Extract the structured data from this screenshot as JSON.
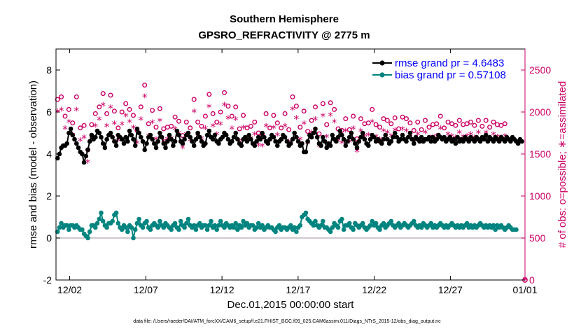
{
  "chart_data": {
    "type": "line",
    "title": "Southern Hemisphere",
    "subtitle": "GPSRO_REFRACTIVITY @ 2775 m",
    "xlabel": "Dec.01,2015 00:00:00 start",
    "ylabel_left": "rmse and bias (model - observation)",
    "ylabel_right": "# of obs: o=possible; ∗=assimilated",
    "footnote": "data file: /Users/raeder/DAI/ATM_forcXX/CAM6_setup/f.e21.FHIST_BGC.f09_025.CAM6assim.011/Diags_NTrS_2015-12/obs_diag_output.nc",
    "xlim_days": [
      0.6,
      31.4
    ],
    "ylim_left": [
      -2,
      9
    ],
    "ylim_right": [
      0,
      2750
    ],
    "x_ticks": [
      {
        "day": 1.5,
        "label": "12/02"
      },
      {
        "day": 6.5,
        "label": "12/07"
      },
      {
        "day": 11.5,
        "label": "12/12"
      },
      {
        "day": 16.5,
        "label": "12/17"
      },
      {
        "day": 21.5,
        "label": "12/22"
      },
      {
        "day": 26.5,
        "label": "12/27"
      },
      {
        "day": 31.5,
        "label": "01/01"
      }
    ],
    "y_ticks_left": [
      {
        "value": -2,
        "label": "-2"
      },
      {
        "value": 0,
        "label": "0"
      },
      {
        "value": 2,
        "label": "2"
      },
      {
        "value": 4,
        "label": "4"
      },
      {
        "value": 6,
        "label": "6"
      },
      {
        "value": 8,
        "label": "8"
      }
    ],
    "y_ticks_right": [
      {
        "value": 0,
        "label": "0"
      },
      {
        "value": 500,
        "label": "500"
      },
      {
        "value": 1000,
        "label": "1000"
      },
      {
        "value": 1500,
        "label": "1500"
      },
      {
        "value": 2000,
        "label": "2000"
      },
      {
        "value": 2500,
        "label": "2500"
      }
    ],
    "series": [
      {
        "name": "rmse",
        "legend": "rmse grand pr = 4.6483",
        "color": "#000000",
        "values": [
          3.8,
          4.0,
          4.3,
          4.4,
          4.4,
          4.5,
          5.0,
          5.2,
          4.9,
          4.7,
          4.5,
          4.3,
          4.1,
          4.0,
          3.6,
          3.9,
          4.2,
          4.6,
          4.9,
          4.7,
          4.8,
          5.1,
          5.0,
          4.8,
          4.5,
          4.3,
          4.7,
          4.9,
          5.0,
          4.8,
          4.6,
          4.4,
          4.9,
          4.8,
          4.7,
          4.5,
          4.8,
          4.6,
          5.1,
          4.9,
          4.7,
          4.4,
          5.2,
          5.0,
          4.8,
          4.6,
          4.2,
          4.5,
          4.8,
          4.9,
          4.7,
          4.5,
          4.3,
          4.6,
          5.0,
          4.8,
          4.5,
          4.3,
          4.6,
          4.9,
          4.7,
          4.4,
          4.6,
          5.1,
          4.9,
          4.6,
          4.5,
          4.7,
          4.9,
          5.0,
          4.8,
          4.6,
          4.4,
          4.7,
          5.0,
          4.8,
          4.6,
          4.4,
          4.5,
          4.9,
          5.1,
          4.8,
          4.7,
          4.9,
          4.6,
          4.5,
          4.7,
          4.8,
          5.0,
          4.9,
          4.7,
          4.5,
          4.6,
          4.8,
          5.0,
          4.7,
          4.5,
          4.4,
          4.7,
          4.8,
          4.6,
          4.9,
          4.7,
          4.5,
          4.4,
          4.6,
          4.8,
          4.7,
          5.0,
          4.8,
          4.6,
          4.5,
          4.7,
          4.9,
          4.8,
          4.6,
          4.4,
          4.6,
          4.7,
          4.9,
          4.8,
          4.6,
          4.4,
          4.5,
          4.7,
          5.0,
          4.8,
          4.6,
          4.4,
          4.5,
          4.1,
          4.1,
          4.6,
          4.9,
          4.8,
          5.0,
          5.2,
          4.8,
          4.5,
          4.4,
          4.8,
          4.6,
          4.3,
          4.5,
          4.4,
          4.9,
          4.7,
          4.6,
          4.8,
          5.1,
          4.9,
          4.7,
          4.4,
          4.6,
          4.8,
          5.0,
          4.7,
          4.5,
          4.3,
          4.6,
          4.8,
          5.0,
          4.7,
          4.5,
          4.4,
          4.7,
          4.9,
          4.8,
          4.6,
          4.7,
          4.6,
          4.5,
          4.7,
          4.9,
          4.7,
          4.5,
          4.6,
          4.8,
          5.0,
          4.8,
          4.6,
          4.7,
          4.9,
          4.7,
          4.6,
          4.8,
          5.0,
          4.7,
          4.5,
          4.8,
          4.7,
          4.6,
          4.8,
          4.6,
          4.7,
          4.7,
          4.8,
          4.6,
          4.8,
          4.6,
          4.7,
          4.9,
          4.8,
          4.7,
          4.8,
          4.6,
          4.7,
          4.8,
          4.6,
          4.7,
          4.5,
          4.8,
          4.6,
          4.7,
          4.6,
          4.8,
          4.7,
          4.6,
          4.8,
          4.7,
          4.6,
          4.8,
          4.7,
          4.6,
          4.8,
          4.7,
          4.9,
          4.6,
          4.8,
          4.7,
          4.6,
          4.8,
          4.7,
          4.6,
          4.8,
          4.7,
          4.6,
          4.8,
          4.7,
          4.6,
          4.8,
          4.7,
          4.6,
          4.5,
          4.7,
          4.6
        ]
      },
      {
        "name": "bias",
        "legend": "bias grand pr = 0.57108",
        "color": "#00847f",
        "values": [
          0.3,
          0.5,
          0.7,
          0.5,
          0.6,
          0.6,
          0.4,
          0.6,
          0.6,
          0.5,
          0.6,
          0.5,
          0.4,
          0.4,
          0.2,
          0.1,
          0.0,
          0.3,
          0.6,
          0.6,
          0.5,
          0.7,
          0.9,
          1.2,
          0.8,
          0.6,
          0.5,
          0.7,
          0.7,
          0.8,
          1.1,
          1.2,
          0.7,
          0.5,
          0.4,
          0.6,
          0.5,
          0.3,
          0.6,
          0.5,
          0.0,
          0.4,
          0.7,
          0.9,
          0.6,
          0.5,
          0.7,
          0.8,
          0.5,
          0.4,
          0.6,
          0.7,
          0.6,
          0.5,
          0.8,
          0.6,
          0.5,
          0.7,
          0.6,
          0.5,
          0.4,
          0.6,
          0.7,
          0.5,
          0.4,
          0.8,
          0.6,
          0.5,
          0.7,
          0.9,
          0.6,
          0.5,
          0.6,
          0.4,
          0.6,
          0.7,
          0.5,
          0.6,
          0.6,
          0.4,
          0.6,
          0.8,
          0.5,
          0.6,
          0.4,
          0.6,
          0.8,
          0.6,
          0.5,
          0.7,
          0.6,
          0.5,
          0.6,
          0.5,
          0.7,
          0.4,
          0.6,
          0.5,
          0.8,
          0.6,
          0.7,
          0.5,
          0.6,
          0.6,
          0.4,
          0.5,
          0.7,
          0.5,
          0.6,
          0.4,
          0.5,
          0.6,
          0.5,
          0.5,
          0.4,
          0.3,
          0.5,
          0.6,
          0.4,
          0.5,
          0.5,
          0.4,
          0.5,
          0.6,
          0.4,
          0.5,
          0.3,
          0.5,
          0.6,
          1.0,
          1.1,
          1.2,
          0.9,
          0.8,
          0.7,
          0.6,
          0.8,
          0.6,
          0.5,
          0.6,
          0.8,
          0.5,
          0.5,
          0.4,
          0.3,
          0.5,
          0.7,
          0.6,
          0.5,
          0.8,
          0.9,
          0.4,
          0.6,
          0.6,
          0.7,
          0.5,
          0.4,
          0.7,
          0.6,
          0.5,
          0.6,
          0.7,
          0.5,
          0.4,
          0.5,
          0.6,
          0.8,
          0.6,
          0.7,
          0.5,
          0.4,
          0.6,
          0.7,
          0.5,
          0.6,
          0.7,
          0.8,
          0.6,
          0.5,
          0.6,
          0.7,
          0.5,
          0.6,
          0.7,
          0.6,
          0.5,
          0.6,
          0.7,
          0.8,
          0.6,
          0.5,
          0.6,
          0.5,
          0.7,
          0.6,
          0.5,
          0.6,
          0.7,
          0.5,
          0.6,
          0.5,
          0.6,
          0.7,
          0.6,
          0.5,
          0.6,
          0.5,
          0.6,
          0.7,
          0.6,
          0.5,
          0.6,
          0.5,
          0.6,
          0.5,
          0.6,
          0.7,
          0.5,
          0.6,
          0.5,
          0.6,
          0.5,
          0.6,
          0.7,
          0.6,
          0.5,
          0.6,
          0.5,
          0.6,
          0.5,
          0.6,
          0.4,
          0.6,
          0.5,
          0.6,
          0.5,
          0.4,
          0.5,
          0.6,
          0.5,
          0.4,
          0.4,
          0.4
        ]
      },
      {
        "name": "possible",
        "marker": "o",
        "color": "#cc0066",
        "values": [
          2150,
          2320,
          2180,
          1990,
          1950,
          2090,
          2030,
          1880,
          1870,
          1940,
          2180,
          1980,
          1810,
          1830,
          1840,
          1590,
          1550,
          1720,
          1850,
          2040,
          1980,
          1940,
          2060,
          2140,
          2220,
          2050,
          1980,
          2120,
          2200,
          1990,
          2010,
          2040,
          1810,
          1890,
          2000,
          2050,
          2100,
          2060,
          2030,
          2130,
          1960,
          1860,
          1780,
          1850,
          2060,
          2180,
          2320,
          1890,
          1860,
          1820,
          2020,
          1970,
          1820,
          1780,
          2040,
          1810,
          1800,
          1950,
          1820,
          1730,
          1830,
          2050,
          1940,
          1870,
          1890,
          1780,
          1720,
          1960,
          1880,
          1920,
          1810,
          1760,
          2150,
          1910,
          1880,
          1780,
          1830,
          2110,
          1950,
          1970,
          2210,
          2040,
          1980,
          1840,
          1880,
          1960,
          2000,
          2180,
          2230,
          2100,
          2070,
          1920,
          1950,
          2050,
          2060,
          1890,
          1800,
          1860,
          1960,
          2070,
          1810,
          1960,
          1830,
          1770,
          1880,
          1980,
          1750,
          1690,
          1740,
          2040,
          1980,
          1880,
          1810,
          1790,
          1960,
          1860,
          1870,
          1690,
          1810,
          2200,
          1980,
          1920,
          1790,
          2040,
          2180,
          2100,
          2070,
          1900,
          1820,
          1870,
          2010,
          1940,
          1770,
          1790,
          1900,
          1860,
          2060,
          1880,
          1740,
          1690,
          2100,
          1960,
          1850,
          1870,
          2110,
          2230,
          2030,
          1900,
          1800,
          1910,
          1780,
          1840,
          1920,
          1850,
          1790,
          1880,
          1950,
          1780,
          1680,
          1810,
          1920,
          1960,
          1860,
          1780,
          1870,
          1760,
          2030,
          2090,
          1850,
          1880,
          1820,
          1780,
          1920,
          1860,
          1900,
          1950,
          1860,
          1840,
          1930,
          1880,
          1800,
          1860,
          1940,
          1870,
          1920,
          1800,
          1870,
          1830,
          1780,
          1850,
          1880,
          1810,
          1790,
          1840,
          1900,
          1860,
          1820,
          1810,
          1850,
          1890,
          1860,
          1880,
          1950,
          1860,
          1810,
          1840,
          1880,
          1820,
          1860,
          1790,
          1840,
          1870,
          1900,
          1830,
          1850,
          1880,
          1860,
          1900,
          1880,
          1820,
          1840,
          1870,
          1900,
          1860,
          1830,
          1860,
          1900,
          1870,
          1820,
          1860,
          1880,
          1830,
          1850,
          1870,
          1840,
          1860,
          1860,
          1880
        ]
      },
      {
        "name": "assimilated",
        "marker": "*",
        "color": "#cc0066",
        "values": [
          2000,
          2200,
          2020,
          1850,
          1800,
          1930,
          1880,
          1730,
          1720,
          1780,
          2020,
          1830,
          1660,
          1680,
          1690,
          1450,
          1400,
          1570,
          1700,
          1890,
          1830,
          1790,
          1910,
          1990,
          2080,
          1900,
          1830,
          1970,
          2050,
          1850,
          1860,
          1890,
          1660,
          1740,
          1850,
          1900,
          1950,
          1910,
          1880,
          1980,
          1810,
          1710,
          1630,
          1700,
          1910,
          2030,
          2180,
          1740,
          1710,
          1670,
          1870,
          1820,
          1670,
          1630,
          1890,
          1660,
          1650,
          1800,
          1670,
          1580,
          1680,
          1900,
          1790,
          1720,
          1740,
          1630,
          1570,
          1810,
          1730,
          1770,
          1660,
          1610,
          2000,
          1760,
          1730,
          1630,
          1680,
          1960,
          1800,
          1820,
          2060,
          1890,
          1830,
          1690,
          1730,
          1810,
          1850,
          2030,
          2080,
          1950,
          1920,
          1770,
          1800,
          1900,
          1910,
          1740,
          1650,
          1710,
          1810,
          1920,
          1660,
          1810,
          1680,
          1620,
          1730,
          1830,
          1600,
          1540,
          1590,
          1890,
          1830,
          1730,
          1660,
          1640,
          1810,
          1710,
          1720,
          1540,
          1660,
          2050,
          1830,
          1770,
          1640,
          1890,
          2030,
          1950,
          1920,
          1750,
          1670,
          1720,
          1860,
          1790,
          1620,
          1640,
          1750,
          1710,
          1910,
          1730,
          1590,
          1540,
          1950,
          1810,
          1700,
          1720,
          1960,
          2080,
          1880,
          1750,
          1650,
          1760,
          1630,
          1690,
          1770,
          1700,
          1640,
          1730,
          1800,
          1630,
          1530,
          1660,
          1770,
          1810,
          1710,
          1630,
          1720,
          1610,
          1880,
          1940,
          1700,
          1730,
          1670,
          1630,
          1770,
          1710,
          1750,
          1800,
          1710,
          1690,
          1780,
          1730,
          1650,
          1710,
          1790,
          1720,
          1770,
          1650,
          1720,
          1680,
          1630,
          1700,
          1730,
          1660,
          1640,
          1690,
          1750,
          1710,
          1670,
          1660,
          1700,
          1740,
          1710,
          1730,
          1800,
          1710,
          1660,
          1690,
          1730,
          1670,
          1710,
          1640,
          1690,
          1720,
          1750,
          1680,
          1700,
          1730,
          1710,
          1750,
          1730,
          1670,
          1690,
          1720,
          1750,
          1710,
          1680,
          1710,
          1750,
          1720,
          1670,
          1710,
          1730,
          1680,
          1700,
          1720,
          1690,
          1710,
          1710,
          1730
        ]
      }
    ],
    "zero_line_color": "#b5a8b5",
    "left_axis_color": "#000000",
    "right_axis_color": "#cc0066",
    "legend_text_color": "#0000ff",
    "legend_position": "top-right"
  }
}
